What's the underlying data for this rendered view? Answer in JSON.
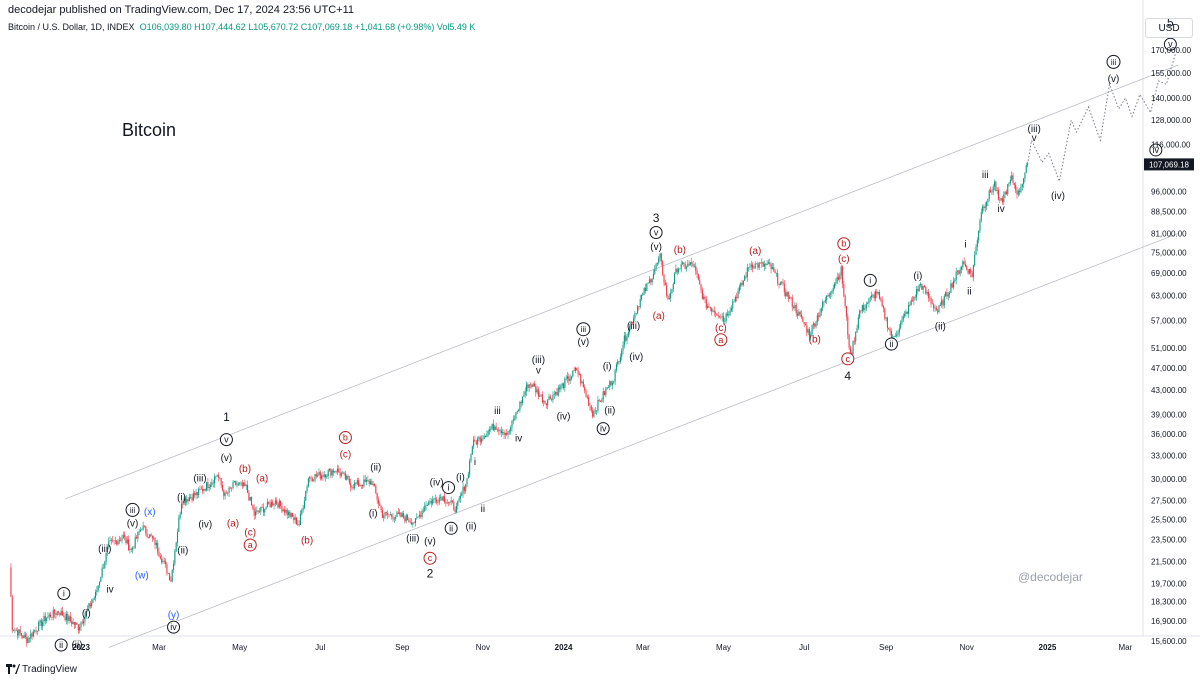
{
  "header": {
    "published": "decodejar published on TradingView.com, Dec 17, 2024 23:56 UTC+11"
  },
  "symbol_bar": {
    "name": "Bitcoin / U.S. Dollar, 1D, INDEX",
    "open": "O106,039.80",
    "high": "H107,444.62",
    "low": "L105,670.72",
    "close": "C107,069.18",
    "change": "+1,041.68 (+0.98%)",
    "vol": "Vol5.49 K"
  },
  "annotation_title": "Bitcoin",
  "watermark": "@decodejar",
  "currency_button": "USD",
  "footer_brand": "TradingView",
  "colors": {
    "candle_up": "#089981",
    "candle_down": "#f23645",
    "wave_black": "#131722",
    "wave_red": "#b71c1c",
    "wave_blue": "#2962ff",
    "channel": "#b2b5be",
    "last_price_bg": "#131722"
  },
  "chart_data": {
    "type": "candlestick",
    "scale": "log",
    "last_price": "107,069.18",
    "yticks": [
      {
        "v": 170000,
        "label": "170,000.00"
      },
      {
        "v": 155000,
        "label": "155,000.00"
      },
      {
        "v": 140000,
        "label": "140,000.00"
      },
      {
        "v": 128000,
        "label": "128,000.00"
      },
      {
        "v": 116000,
        "label": "116,000.00"
      },
      {
        "v": 96000,
        "label": "96,000.00"
      },
      {
        "v": 88500,
        "label": "88,500.00"
      },
      {
        "v": 81000,
        "label": "81,000.00"
      },
      {
        "v": 75000,
        "label": "75,000.00"
      },
      {
        "v": 69000,
        "label": "69,000.00"
      },
      {
        "v": 63000,
        "label": "63,000.00"
      },
      {
        "v": 57000,
        "label": "57,000.00"
      },
      {
        "v": 51000,
        "label": "51,000.00"
      },
      {
        "v": 47000,
        "label": "47,000.00"
      },
      {
        "v": 43000,
        "label": "43,000.00"
      },
      {
        "v": 39000,
        "label": "39,000.00"
      },
      {
        "v": 36000,
        "label": "36,000.00"
      },
      {
        "v": 33000,
        "label": "33,000.00"
      },
      {
        "v": 30000,
        "label": "30,000.00"
      },
      {
        "v": 27500,
        "label": "27,500.00"
      },
      {
        "v": 25500,
        "label": "25,500.00"
      },
      {
        "v": 23500,
        "label": "23,500.00"
      },
      {
        "v": 21500,
        "label": "21,500.00"
      },
      {
        "v": 19700,
        "label": "19,700.00"
      },
      {
        "v": 18300,
        "label": "18,300.00"
      },
      {
        "v": 16900,
        "label": "16,900.00"
      },
      {
        "v": 15600,
        "label": "15,600.00"
      }
    ],
    "xticks": [
      {
        "d": "2023-01-01",
        "label": "2023",
        "bold": true
      },
      {
        "d": "2023-03-01",
        "label": "Mar"
      },
      {
        "d": "2023-05-01",
        "label": "May"
      },
      {
        "d": "2023-07-01",
        "label": "Jul"
      },
      {
        "d": "2023-09-01",
        "label": "Sep"
      },
      {
        "d": "2023-11-01",
        "label": "Nov"
      },
      {
        "d": "2024-01-01",
        "label": "2024",
        "bold": true
      },
      {
        "d": "2024-03-01",
        "label": "Mar"
      },
      {
        "d": "2024-05-01",
        "label": "May"
      },
      {
        "d": "2024-07-01",
        "label": "Jul"
      },
      {
        "d": "2024-09-01",
        "label": "Sep"
      },
      {
        "d": "2024-11-01",
        "label": "Nov"
      },
      {
        "d": "2025-01-01",
        "label": "2025",
        "bold": true
      },
      {
        "d": "2025-03-01",
        "label": "Mar"
      }
    ],
    "price_path": [
      [
        "2022-11-08",
        21000
      ],
      [
        "2022-11-10",
        16500
      ],
      [
        "2022-11-21",
        15700
      ],
      [
        "2022-12-05",
        17100
      ],
      [
        "2022-12-15",
        17600
      ],
      [
        "2022-12-30",
        16500
      ],
      [
        "2023-01-12",
        18800
      ],
      [
        "2023-01-22",
        23000
      ],
      [
        "2023-02-02",
        23800
      ],
      [
        "2023-02-08",
        22500
      ],
      [
        "2023-02-16",
        24800
      ],
      [
        "2023-02-26",
        23200
      ],
      [
        "2023-03-10",
        20000
      ],
      [
        "2023-03-18",
        27500
      ],
      [
        "2023-03-30",
        28300
      ],
      [
        "2023-04-10",
        29800
      ],
      [
        "2023-04-14",
        30600
      ],
      [
        "2023-04-20",
        28000
      ],
      [
        "2023-04-27",
        29400
      ],
      [
        "2023-05-06",
        29000
      ],
      [
        "2023-05-12",
        26000
      ],
      [
        "2023-05-28",
        27500
      ],
      [
        "2023-06-15",
        25000
      ],
      [
        "2023-06-22",
        30200
      ],
      [
        "2023-07-01",
        30500
      ],
      [
        "2023-07-13",
        31200
      ],
      [
        "2023-07-25",
        29300
      ],
      [
        "2023-08-09",
        29700
      ],
      [
        "2023-08-17",
        26000
      ],
      [
        "2023-09-01",
        25800
      ],
      [
        "2023-09-11",
        25200
      ],
      [
        "2023-09-19",
        27200
      ],
      [
        "2023-10-01",
        28000
      ],
      [
        "2023-10-12",
        26600
      ],
      [
        "2023-10-20",
        30000
      ],
      [
        "2023-10-24",
        34500
      ],
      [
        "2023-11-10",
        37300
      ],
      [
        "2023-11-20",
        36000
      ],
      [
        "2023-12-05",
        44000
      ],
      [
        "2023-12-08",
        44000
      ],
      [
        "2023-12-18",
        41000
      ],
      [
        "2023-12-28",
        43000
      ],
      [
        "2024-01-11",
        46700
      ],
      [
        "2024-01-23",
        39200
      ],
      [
        "2024-02-08",
        45300
      ],
      [
        "2024-02-15",
        52000
      ],
      [
        "2024-02-28",
        62000
      ],
      [
        "2024-03-05",
        66000
      ],
      [
        "2024-03-14",
        73500
      ],
      [
        "2024-03-20",
        61500
      ],
      [
        "2024-03-27",
        70500
      ],
      [
        "2024-04-08",
        71500
      ],
      [
        "2024-04-17",
        61000
      ],
      [
        "2024-04-30",
        58000
      ],
      [
        "2024-05-01",
        57000
      ],
      [
        "2024-05-15",
        66000
      ],
      [
        "2024-05-21",
        71500
      ],
      [
        "2024-06-05",
        71000
      ],
      [
        "2024-06-24",
        60000
      ],
      [
        "2024-07-05",
        54000
      ],
      [
        "2024-07-14",
        60000
      ],
      [
        "2024-07-29",
        69800
      ],
      [
        "2024-08-05",
        49200
      ],
      [
        "2024-08-12",
        59000
      ],
      [
        "2024-08-25",
        64000
      ],
      [
        "2024-09-06",
        52700
      ],
      [
        "2024-09-27",
        66000
      ],
      [
        "2024-10-10",
        59000
      ],
      [
        "2024-10-29",
        72000
      ],
      [
        "2024-11-05",
        68500
      ],
      [
        "2024-11-12",
        89000
      ],
      [
        "2024-11-22",
        99000
      ],
      [
        "2024-11-26",
        91000
      ],
      [
        "2024-12-05",
        101000
      ],
      [
        "2024-12-10",
        95000
      ],
      [
        "2024-12-17",
        107069
      ]
    ],
    "projection_path": [
      [
        "2024-12-17",
        107069
      ],
      [
        "2024-12-20",
        118000
      ],
      [
        "2024-12-28",
        108000
      ],
      [
        "2025-01-02",
        112000
      ],
      [
        "2025-01-10",
        100000
      ],
      [
        "2025-01-19",
        128000
      ],
      [
        "2025-01-23",
        122000
      ],
      [
        "2025-02-01",
        135000
      ],
      [
        "2025-02-10",
        118000
      ],
      [
        "2025-02-17",
        148000
      ],
      [
        "2025-02-24",
        134000
      ],
      [
        "2025-03-01",
        140000
      ],
      [
        "2025-03-06",
        130000
      ],
      [
        "2025-03-12",
        142000
      ],
      [
        "2025-03-20",
        132000
      ],
      [
        "2025-03-26",
        150000
      ],
      [
        "2025-04-01",
        148000
      ],
      [
        "2025-04-08",
        168000
      ]
    ],
    "channel_upper": [
      [
        "2022-12-20",
        27700
      ],
      [
        "2025-04-10",
        160000
      ]
    ],
    "channel_lower": [
      [
        "2023-01-22",
        15200
      ],
      [
        "2025-04-10",
        81000
      ]
    ],
    "wave_labels": [
      {
        "t": "(i)",
        "d": "2023-01-05",
        "v": 17500,
        "c": "black"
      },
      {
        "t": "i",
        "d": "2022-12-19",
        "v": 18900,
        "c": "black",
        "circled": true
      },
      {
        "t": "ii",
        "d": "2022-12-17",
        "v": 15350,
        "c": "black",
        "circled": true
      },
      {
        "t": "(ii)",
        "d": "2022-12-29",
        "v": 15400,
        "c": "black"
      },
      {
        "t": "iv",
        "d": "2023-01-23",
        "v": 19300,
        "c": "black"
      },
      {
        "t": "(iii)",
        "d": "2023-01-19",
        "v": 22700,
        "c": "black"
      },
      {
        "t": "iii",
        "d": "2023-02-09",
        "v": 26500,
        "c": "black",
        "circled": true
      },
      {
        "t": "(v)",
        "d": "2023-02-09",
        "v": 25200,
        "c": "black"
      },
      {
        "t": "(x)",
        "d": "2023-02-22",
        "v": 26400,
        "c": "blue"
      },
      {
        "t": "(w)",
        "d": "2023-02-16",
        "v": 20400,
        "c": "blue"
      },
      {
        "t": "(y)",
        "d": "2023-03-12",
        "v": 17400,
        "c": "blue"
      },
      {
        "t": "iv",
        "d": "2023-03-12",
        "v": 16500,
        "c": "black",
        "circled": true
      },
      {
        "t": "(i)",
        "d": "2023-03-18",
        "v": 28000,
        "c": "black"
      },
      {
        "t": "(ii)",
        "d": "2023-03-19",
        "v": 22600,
        "c": "black"
      },
      {
        "t": "(iii)",
        "d": "2023-04-01",
        "v": 30200,
        "c": "black"
      },
      {
        "t": "(iv)",
        "d": "2023-04-05",
        "v": 25100,
        "c": "black"
      },
      {
        "t": "1",
        "d": "2023-04-21",
        "v": 38600,
        "c": "black",
        "big": true
      },
      {
        "t": "v",
        "d": "2023-04-21",
        "v": 35200,
        "c": "black",
        "circled": true
      },
      {
        "t": "(v)",
        "d": "2023-04-21",
        "v": 32800,
        "c": "black"
      },
      {
        "t": "(b)",
        "d": "2023-05-05",
        "v": 31400,
        "c": "red"
      },
      {
        "t": "(a)",
        "d": "2023-04-26",
        "v": 25200,
        "c": "red"
      },
      {
        "t": "(a)",
        "d": "2023-05-18",
        "v": 30200,
        "c": "red"
      },
      {
        "t": "(c)",
        "d": "2023-05-09",
        "v": 24300,
        "c": "red"
      },
      {
        "t": "a",
        "d": "2023-05-09",
        "v": 23000,
        "c": "red",
        "circled": true
      },
      {
        "t": "(b)",
        "d": "2023-06-21",
        "v": 23500,
        "c": "red"
      },
      {
        "t": "b",
        "d": "2023-07-20",
        "v": 35500,
        "c": "red",
        "circled": true
      },
      {
        "t": "(c)",
        "d": "2023-07-20",
        "v": 33300,
        "c": "red"
      },
      {
        "t": "(ii)",
        "d": "2023-08-12",
        "v": 31600,
        "c": "black"
      },
      {
        "t": "(i)",
        "d": "2023-08-10",
        "v": 26200,
        "c": "black"
      },
      {
        "t": "(iv)",
        "d": "2023-09-27",
        "v": 29700,
        "c": "black"
      },
      {
        "t": "(iii)",
        "d": "2023-09-09",
        "v": 23700,
        "c": "black"
      },
      {
        "t": "(v)",
        "d": "2023-09-22",
        "v": 23400,
        "c": "black"
      },
      {
        "t": "c",
        "d": "2023-09-22",
        "v": 21800,
        "c": "red",
        "circled": true
      },
      {
        "t": "2",
        "d": "2023-09-22",
        "v": 20500,
        "c": "black",
        "big": true
      },
      {
        "t": "i",
        "d": "2023-10-06",
        "v": 29000,
        "c": "black",
        "circled": true
      },
      {
        "t": "(i)",
        "d": "2023-10-15",
        "v": 30300,
        "c": "black"
      },
      {
        "t": "ii",
        "d": "2023-10-08",
        "v": 24600,
        "c": "black",
        "circled": true
      },
      {
        "t": "(ii)",
        "d": "2023-10-23",
        "v": 24900,
        "c": "black"
      },
      {
        "t": "i",
        "d": "2023-10-26",
        "v": 32300,
        "c": "black"
      },
      {
        "t": "ii",
        "d": "2023-11-01",
        "v": 26700,
        "c": "black"
      },
      {
        "t": "iii",
        "d": "2023-11-12",
        "v": 39700,
        "c": "black"
      },
      {
        "t": "iv",
        "d": "2023-11-28",
        "v": 35500,
        "c": "black"
      },
      {
        "t": "(iii)",
        "d": "2023-12-13",
        "v": 48800,
        "c": "black"
      },
      {
        "t": "v",
        "d": "2023-12-13",
        "v": 46700,
        "c": "black"
      },
      {
        "t": "(iv)",
        "d": "2024-01-01",
        "v": 38800,
        "c": "black"
      },
      {
        "t": "iii",
        "d": "2024-01-16",
        "v": 55000,
        "c": "black",
        "circled": true
      },
      {
        "t": "(v)",
        "d": "2024-01-16",
        "v": 52400,
        "c": "black"
      },
      {
        "t": "iv",
        "d": "2024-01-31",
        "v": 36800,
        "c": "black",
        "circled": true
      },
      {
        "t": "(i)",
        "d": "2024-02-03",
        "v": 47500,
        "c": "black"
      },
      {
        "t": "(ii)",
        "d": "2024-02-05",
        "v": 39800,
        "c": "black"
      },
      {
        "t": "(iii)",
        "d": "2024-02-23",
        "v": 56000,
        "c": "black"
      },
      {
        "t": "(iv)",
        "d": "2024-02-25",
        "v": 49400,
        "c": "black"
      },
      {
        "t": "3",
        "d": "2024-03-11",
        "v": 86200,
        "c": "black",
        "big": true
      },
      {
        "t": "v",
        "d": "2024-03-11",
        "v": 81300,
        "c": "black",
        "circled": true
      },
      {
        "t": "(v)",
        "d": "2024-03-11",
        "v": 77000,
        "c": "black"
      },
      {
        "t": "(b)",
        "d": "2024-03-29",
        "v": 76000,
        "c": "red"
      },
      {
        "t": "(a)",
        "d": "2024-03-13",
        "v": 58200,
        "c": "red"
      },
      {
        "t": "(a)",
        "d": "2024-05-25",
        "v": 75800,
        "c": "red"
      },
      {
        "t": "(c)",
        "d": "2024-04-29",
        "v": 55500,
        "c": "red"
      },
      {
        "t": "a",
        "d": "2024-04-29",
        "v": 52700,
        "c": "red",
        "circled": true
      },
      {
        "t": "(b)",
        "d": "2024-07-09",
        "v": 53000,
        "c": "red"
      },
      {
        "t": "b",
        "d": "2024-07-31",
        "v": 77700,
        "c": "red",
        "circled": true
      },
      {
        "t": "(c)",
        "d": "2024-07-31",
        "v": 73400,
        "c": "red"
      },
      {
        "t": "i",
        "d": "2024-08-20",
        "v": 67000,
        "c": "black",
        "circled": true
      },
      {
        "t": "c",
        "d": "2024-08-03",
        "v": 48800,
        "c": "red",
        "circled": true
      },
      {
        "t": "4",
        "d": "2024-08-03",
        "v": 45500,
        "c": "black",
        "big": true
      },
      {
        "t": "ii",
        "d": "2024-09-05",
        "v": 51800,
        "c": "black",
        "circled": true
      },
      {
        "t": "(i)",
        "d": "2024-09-25",
        "v": 68500,
        "c": "black"
      },
      {
        "t": "(ii)",
        "d": "2024-10-12",
        "v": 55800,
        "c": "black"
      },
      {
        "t": "i",
        "d": "2024-10-31",
        "v": 77700,
        "c": "black"
      },
      {
        "t": "ii",
        "d": "2024-11-03",
        "v": 64300,
        "c": "black"
      },
      {
        "t": "iii",
        "d": "2024-11-15",
        "v": 103000,
        "c": "black"
      },
      {
        "t": "iv",
        "d": "2024-11-27",
        "v": 89700,
        "c": "black"
      },
      {
        "t": "(iii)",
        "d": "2024-12-22",
        "v": 124000,
        "c": "black"
      },
      {
        "t": "v",
        "d": "2024-12-22",
        "v": 119500,
        "c": "black"
      },
      {
        "t": "(iv)",
        "d": "2025-01-09",
        "v": 94700,
        "c": "black"
      },
      {
        "t": "iii",
        "d": "2025-02-20",
        "v": 162000,
        "c": "black",
        "circled": true
      },
      {
        "t": "(v)",
        "d": "2025-02-20",
        "v": 151800,
        "c": "black"
      },
      {
        "t": "iv",
        "d": "2025-03-24",
        "v": 113500,
        "c": "black",
        "circled": true
      },
      {
        "t": "5",
        "d": "2025-04-04",
        "v": 190000,
        "c": "black",
        "big": true
      },
      {
        "t": "v",
        "d": "2025-04-04",
        "v": 174000,
        "c": "black",
        "circled": true
      }
    ]
  }
}
